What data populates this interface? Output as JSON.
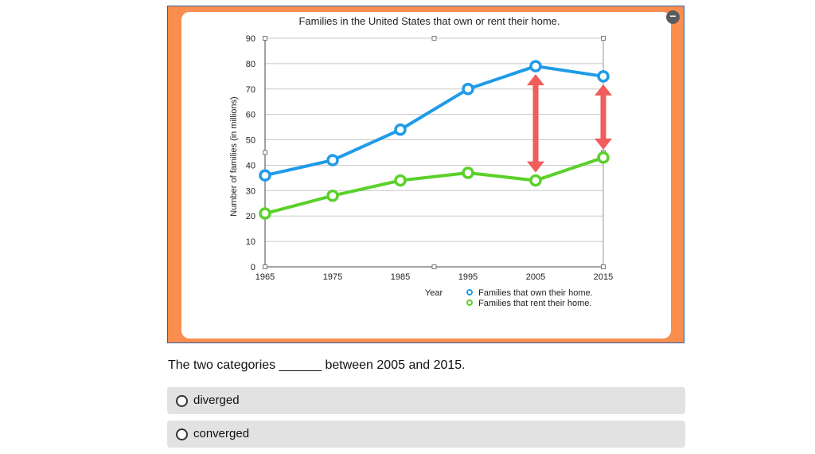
{
  "chart_data": {
    "type": "line",
    "title": "Families in the United States that own or rent their home.",
    "xlabel": "Year",
    "ylabel": "Number of families (in millions)",
    "x": [
      "1965",
      "1975",
      "1985",
      "1995",
      "2005",
      "2015"
    ],
    "yticks": [
      "0",
      "10",
      "20",
      "30",
      "40",
      "50",
      "60",
      "70",
      "80",
      "90"
    ],
    "ylim": [
      0,
      90
    ],
    "grid": true,
    "legend_placement": "bottom-right",
    "series": [
      {
        "name": "Families that own their home.",
        "color": "#1f9be8",
        "values": [
          36,
          42,
          54,
          70,
          79,
          75
        ]
      },
      {
        "name": "Families that rent their home.",
        "color": "#5ad12a",
        "values": [
          21,
          28,
          34,
          37,
          34,
          43
        ]
      }
    ],
    "annotations": [
      {
        "type": "double-arrow",
        "x": "2005",
        "from": 34,
        "to": 79,
        "color": "#f25c5c"
      },
      {
        "type": "double-arrow",
        "x": "2015",
        "from": 43,
        "to": 75,
        "color": "#f25c5c"
      }
    ]
  },
  "question": {
    "text": "The two categories ______ between 2005 and 2015."
  },
  "options": [
    {
      "label": "diverged"
    },
    {
      "label": "converged"
    }
  ],
  "controls": {
    "collapse_icon": "minus-circle-icon",
    "collapse_glyph": "−"
  }
}
